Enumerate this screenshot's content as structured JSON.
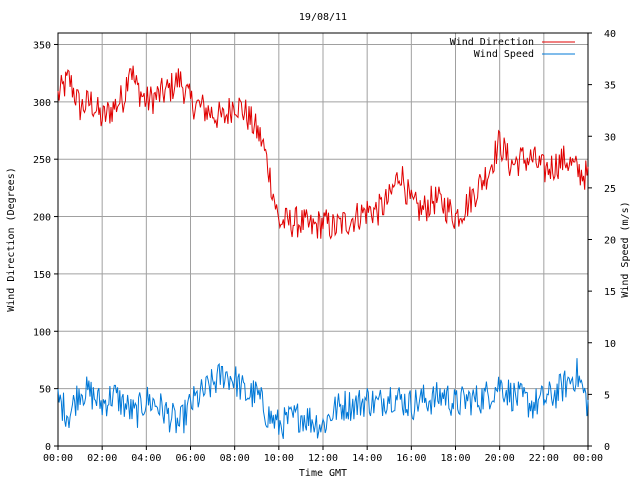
{
  "chart_data": {
    "type": "line",
    "title": "19/08/11",
    "xlabel": "Time GMT",
    "ylabel_left": "Wind Direction (Degrees)",
    "ylabel_right": "Wind Speed (m/s)",
    "x_ticks": [
      "00:00",
      "02:00",
      "04:00",
      "06:00",
      "08:00",
      "10:00",
      "12:00",
      "14:00",
      "16:00",
      "18:00",
      "20:00",
      "22:00",
      "00:00"
    ],
    "x_range_hours": [
      0,
      24
    ],
    "y_left_ticks": [
      "0",
      "50",
      "100",
      "150",
      "200",
      "250",
      "300",
      "350"
    ],
    "y_left_range": [
      0,
      360
    ],
    "y_right_ticks": [
      "0",
      "5",
      "10",
      "15",
      "20",
      "25",
      "30",
      "35",
      "40"
    ],
    "y_right_range": [
      0,
      40
    ],
    "grid": true,
    "legend_position": "top-right",
    "series": [
      {
        "name": "Wind Direction",
        "axis": "left",
        "color": "#e00000",
        "x_hours": [
          0,
          0.5,
          1,
          1.5,
          2,
          2.5,
          3,
          3.25,
          3.5,
          4,
          4.5,
          5,
          5.5,
          6,
          6.5,
          7,
          7.5,
          8,
          8.5,
          9,
          9.25,
          9.5,
          9.75,
          10,
          10.5,
          11,
          11.5,
          12,
          12.5,
          13,
          13.5,
          14,
          14.5,
          15,
          15.5,
          16,
          16.5,
          17,
          17.5,
          18,
          18.5,
          19,
          19.5,
          20,
          20.5,
          21,
          21.5,
          22,
          22.5,
          23,
          23.5,
          24
        ],
        "values": [
          305,
          320,
          295,
          300,
          285,
          295,
          305,
          335,
          315,
          300,
          305,
          310,
          320,
          300,
          295,
          290,
          285,
          300,
          290,
          275,
          265,
          245,
          220,
          195,
          195,
          195,
          190,
          195,
          190,
          195,
          200,
          205,
          205,
          215,
          240,
          210,
          205,
          215,
          210,
          200,
          210,
          225,
          240,
          265,
          245,
          250,
          250,
          240,
          245,
          250,
          240,
          235
        ]
      },
      {
        "name": "Wind Speed",
        "axis": "right",
        "color": "#0078d7",
        "x_hours": [
          0,
          0.5,
          1,
          1.5,
          2,
          2.5,
          3,
          3.5,
          4,
          4.5,
          5,
          5.5,
          6,
          6.5,
          7,
          7.5,
          8,
          8.5,
          9,
          9.5,
          10,
          10.5,
          11,
          11.5,
          12,
          12.5,
          13,
          13.5,
          14,
          14.5,
          15,
          15.5,
          16,
          16.5,
          17,
          17.5,
          18,
          18.5,
          19,
          19.5,
          20,
          20.5,
          21,
          21.5,
          22,
          22.5,
          23,
          23.5,
          24
        ],
        "values": [
          4.5,
          3,
          5.5,
          5,
          4,
          5,
          4,
          3,
          4.5,
          4,
          3,
          2,
          4,
          5,
          6,
          7,
          6.5,
          5,
          5,
          3,
          2,
          2.5,
          3,
          2.5,
          2,
          3.5,
          4,
          4,
          4.5,
          4,
          5,
          4.5,
          4,
          4.5,
          4.5,
          5,
          4,
          4.5,
          4.5,
          5,
          6,
          5,
          4.5,
          4,
          4.5,
          5,
          6,
          7,
          4
        ]
      }
    ]
  }
}
